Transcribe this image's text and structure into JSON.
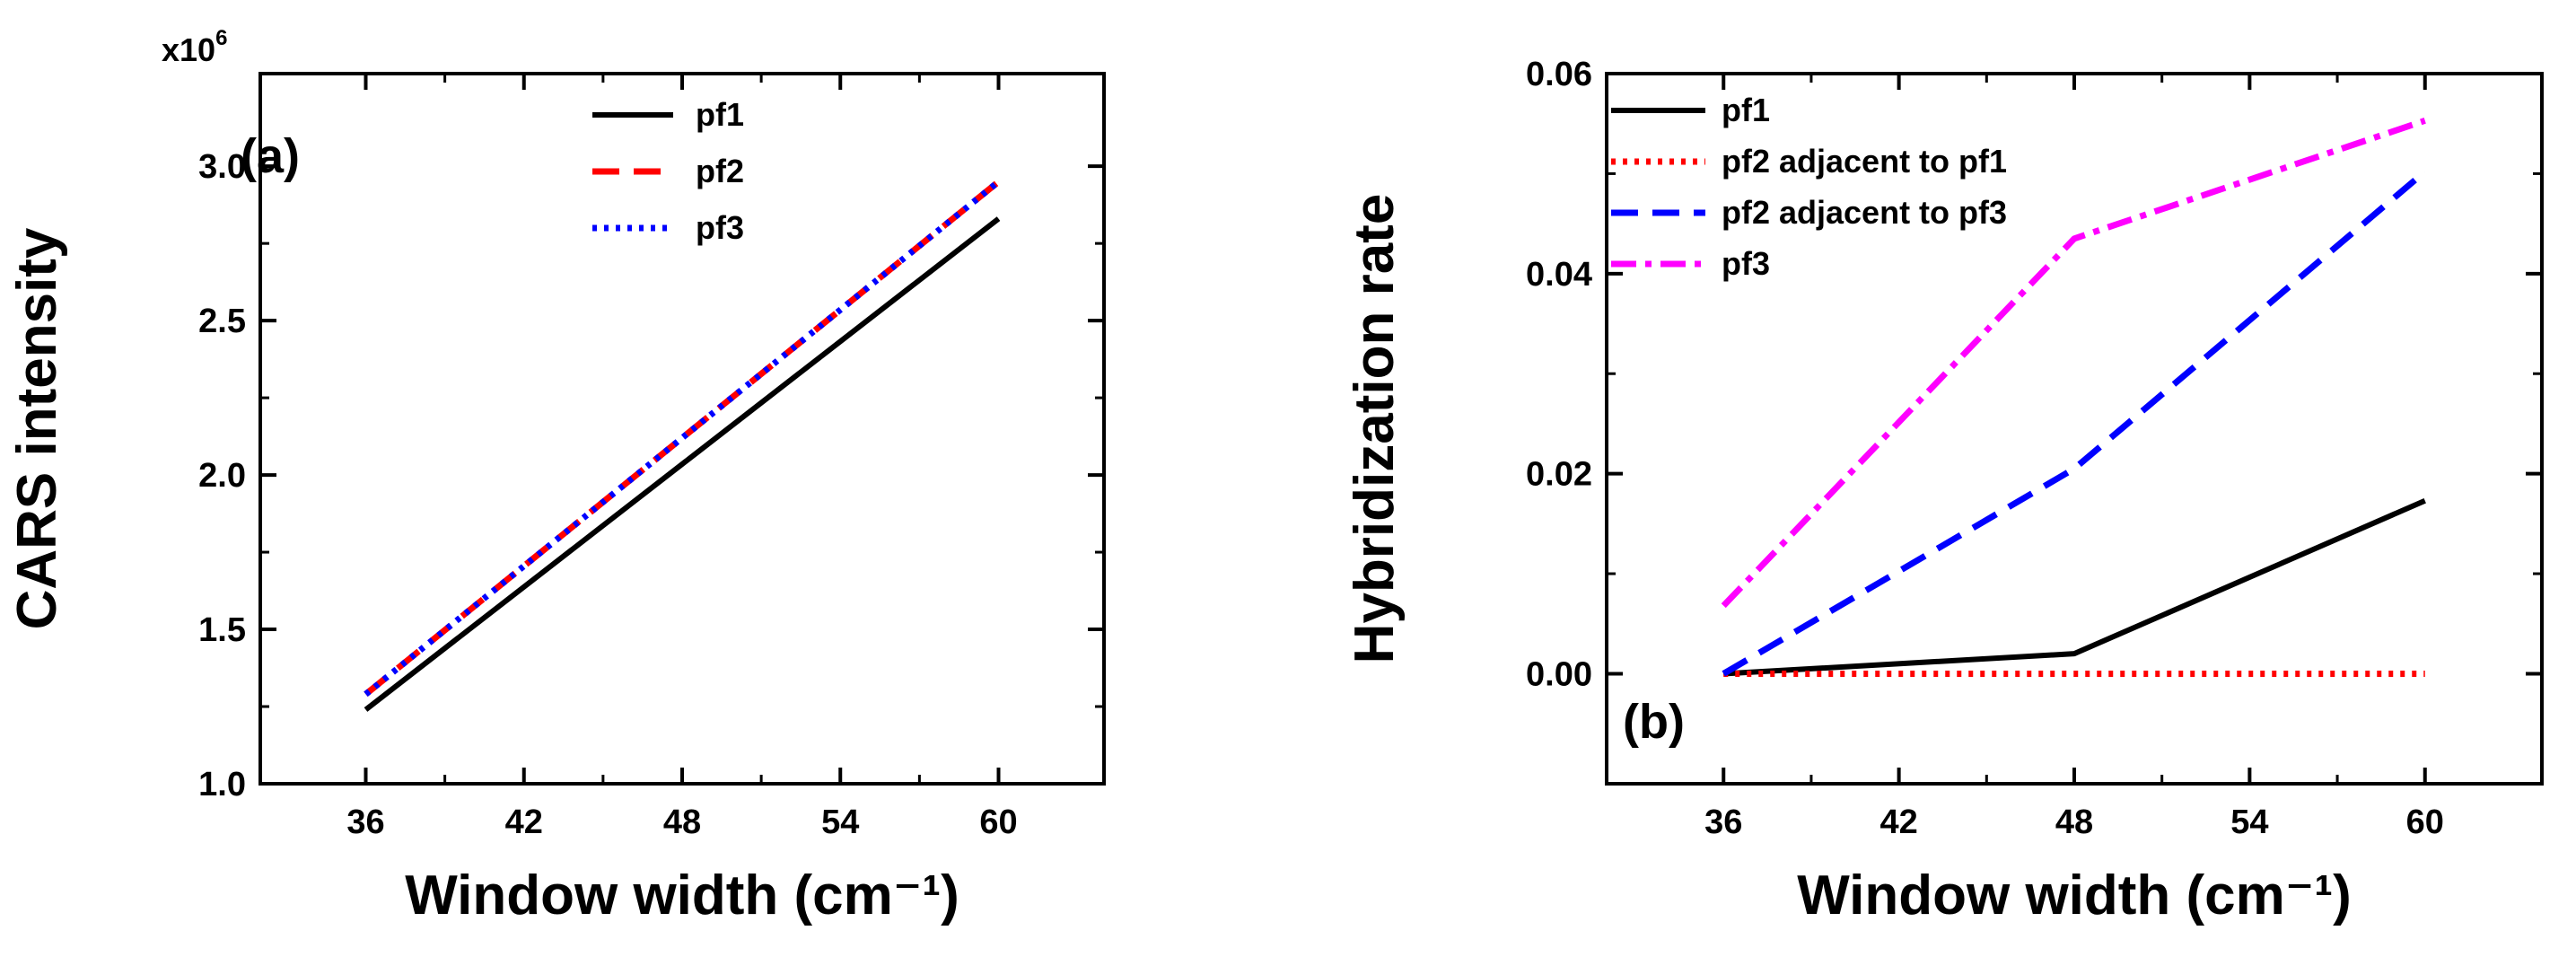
{
  "chart_data": [
    {
      "type": "line",
      "panel_label": "(a)",
      "xlabel": "Window width (cm⁻¹)",
      "ylabel": "CARS intensity",
      "y_exponent_label": "x10",
      "y_exponent_power": "6",
      "xlim": [
        32,
        64
      ],
      "ylim": [
        1.0,
        3.3
      ],
      "x_ticks": [
        36,
        42,
        48,
        54,
        60
      ],
      "x_tick_labels": [
        "36",
        "42",
        "48",
        "54",
        "60"
      ],
      "y_ticks": [
        1.0,
        1.5,
        2.0,
        2.5,
        3.0
      ],
      "y_tick_labels": [
        "1.0",
        "1.5",
        "2.0",
        "2.5",
        "3.0"
      ],
      "legend_position": "top-center",
      "series": [
        {
          "name": "pf1",
          "color": "#000000",
          "style": "solid",
          "x": [
            36,
            60
          ],
          "values": [
            1.24,
            2.83
          ]
        },
        {
          "name": "pf2",
          "color": "#ff0000",
          "style": "dash",
          "x": [
            36,
            60
          ],
          "values": [
            1.29,
            2.95
          ]
        },
        {
          "name": "pf3",
          "color": "#0000ff",
          "style": "dot",
          "x": [
            36,
            60
          ],
          "values": [
            1.29,
            2.95
          ]
        }
      ]
    },
    {
      "type": "line",
      "panel_label": "(b)",
      "xlabel": "Window width (cm⁻¹)",
      "ylabel": "Hybridization rate",
      "xlim": [
        32,
        64
      ],
      "ylim": [
        -0.011,
        0.06
      ],
      "x_ticks": [
        36,
        42,
        48,
        54,
        60
      ],
      "x_tick_labels": [
        "36",
        "42",
        "48",
        "54",
        "60"
      ],
      "y_ticks": [
        0.0,
        0.02,
        0.04,
        0.06
      ],
      "y_tick_labels": [
        "0.00",
        "0.02",
        "0.04",
        "0.06"
      ],
      "legend_position": "top-left",
      "series": [
        {
          "name": "pf1",
          "color": "#000000",
          "style": "solid",
          "x": [
            36,
            48,
            60
          ],
          "values": [
            0.0,
            0.002,
            0.0173
          ]
        },
        {
          "name": "pf2 adjacent to pf1",
          "color": "#ff0000",
          "style": "dot",
          "x": [
            36,
            48,
            60
          ],
          "values": [
            0.0,
            0.0,
            0.0
          ]
        },
        {
          "name": "pf2 adjacent to pf3",
          "color": "#0000ff",
          "style": "dash",
          "x": [
            36,
            48,
            60
          ],
          "values": [
            0.0,
            0.0205,
            0.0502
          ]
        },
        {
          "name": "pf3",
          "color": "#ff00ff",
          "style": "dashdot",
          "x": [
            36,
            48,
            60
          ],
          "values": [
            0.0068,
            0.0435,
            0.0553
          ]
        }
      ]
    }
  ]
}
